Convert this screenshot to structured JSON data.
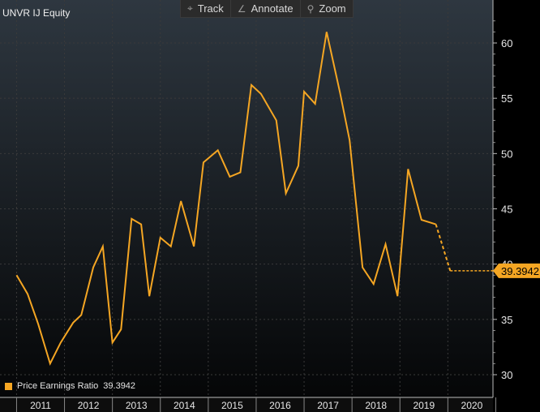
{
  "title": "UNVR IJ Equity",
  "toolbar": {
    "track": {
      "label": "Track",
      "icon": "crosshair-icon"
    },
    "annotate": {
      "label": "Annotate",
      "icon": "pencil-icon"
    },
    "zoom": {
      "label": "Zoom",
      "icon": "magnifier-icon"
    }
  },
  "legend": {
    "label": "Price Earnings Ratio",
    "value": "39.3942"
  },
  "colors": {
    "line": "#f5a623",
    "background": "#000000",
    "grid": "#3a3a3a",
    "axis_text": "#e6e6e6"
  },
  "chart_data": {
    "type": "line",
    "title": "UNVR IJ Equity",
    "xlabel": "",
    "ylabel": "",
    "x_ticks": [
      "2011",
      "2012",
      "2013",
      "2014",
      "2015",
      "2016",
      "2017",
      "2018",
      "2019",
      "2020"
    ],
    "y_ticks": [
      30,
      35,
      40,
      45,
      50,
      55,
      60
    ],
    "ylim": [
      30,
      62
    ],
    "grid": true,
    "legend_position": "bottom-left",
    "last_value_label": "39.3942",
    "series": [
      {
        "name": "Price Earnings Ratio",
        "x": [
          2010.5,
          2010.73,
          2010.95,
          2011.2,
          2011.42,
          2011.68,
          2011.85,
          2012.1,
          2012.3,
          2012.5,
          2012.68,
          2012.9,
          2013.1,
          2013.27,
          2013.5,
          2013.72,
          2013.93,
          2014.2,
          2014.4,
          2014.7,
          2014.95,
          2015.17,
          2015.4,
          2015.6,
          2015.92,
          2016.12,
          2016.38,
          2016.5,
          2016.73,
          2016.97,
          2017.25,
          2017.45,
          2017.72,
          2017.95,
          2018.2,
          2018.45,
          2018.67,
          2018.95,
          2019.25,
          2019.55
        ],
        "y": [
          39.0,
          37.3,
          34.6,
          31.0,
          32.9,
          34.7,
          35.4,
          39.7,
          41.6,
          32.9,
          34.1,
          44.1,
          43.6,
          37.1,
          42.4,
          41.6,
          45.7,
          41.6,
          49.2,
          50.3,
          47.9,
          48.3,
          56.2,
          55.4,
          53.0,
          46.4,
          48.9,
          55.6,
          54.5,
          61.0,
          55.5,
          51.2,
          39.7,
          38.2,
          41.8,
          37.1,
          48.6,
          44.0,
          43.6,
          39.3942
        ],
        "dashed_from_index": 38
      }
    ]
  }
}
